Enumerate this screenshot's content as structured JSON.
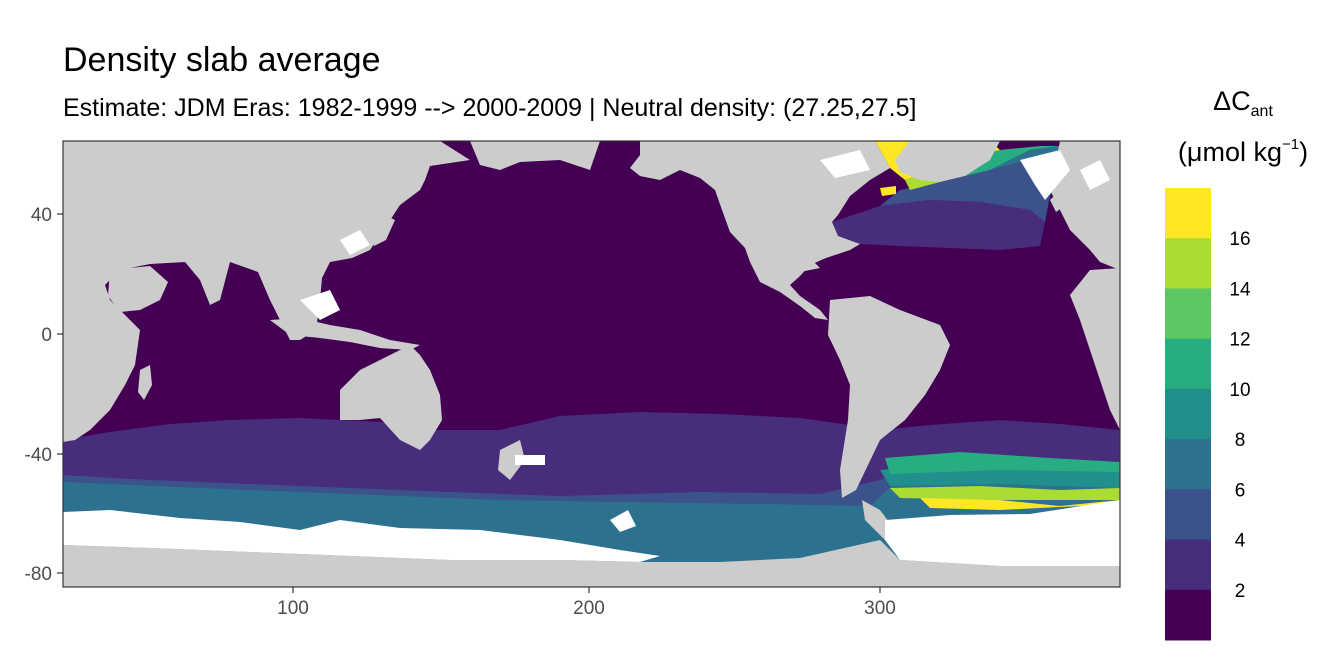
{
  "title": "Density slab average",
  "subtitle": "Estimate: JDM Eras: 1982-1999 --> 2000-2009 | Neutral density: (27.25,27.5]",
  "legend": {
    "title_prefix": "ΔC",
    "title_sub": "ant",
    "unit_base": "(μmol kg",
    "unit_sup": "−1",
    "unit_close": ")",
    "ticks": [
      "2",
      "4",
      "6",
      "8",
      "10",
      "12",
      "14",
      "16"
    ],
    "colors": [
      "#440154",
      "#472D7B",
      "#3B528B",
      "#2C728E",
      "#21908C",
      "#27AD81",
      "#5DC863",
      "#AADC32",
      "#FDE725"
    ]
  },
  "x_ticks": [
    "100",
    "200",
    "300"
  ],
  "y_ticks": [
    "40",
    "0",
    "-40",
    "-80"
  ],
  "colors": {
    "land": "#CCCCCC",
    "nodata": "#FFFFFF"
  }
}
